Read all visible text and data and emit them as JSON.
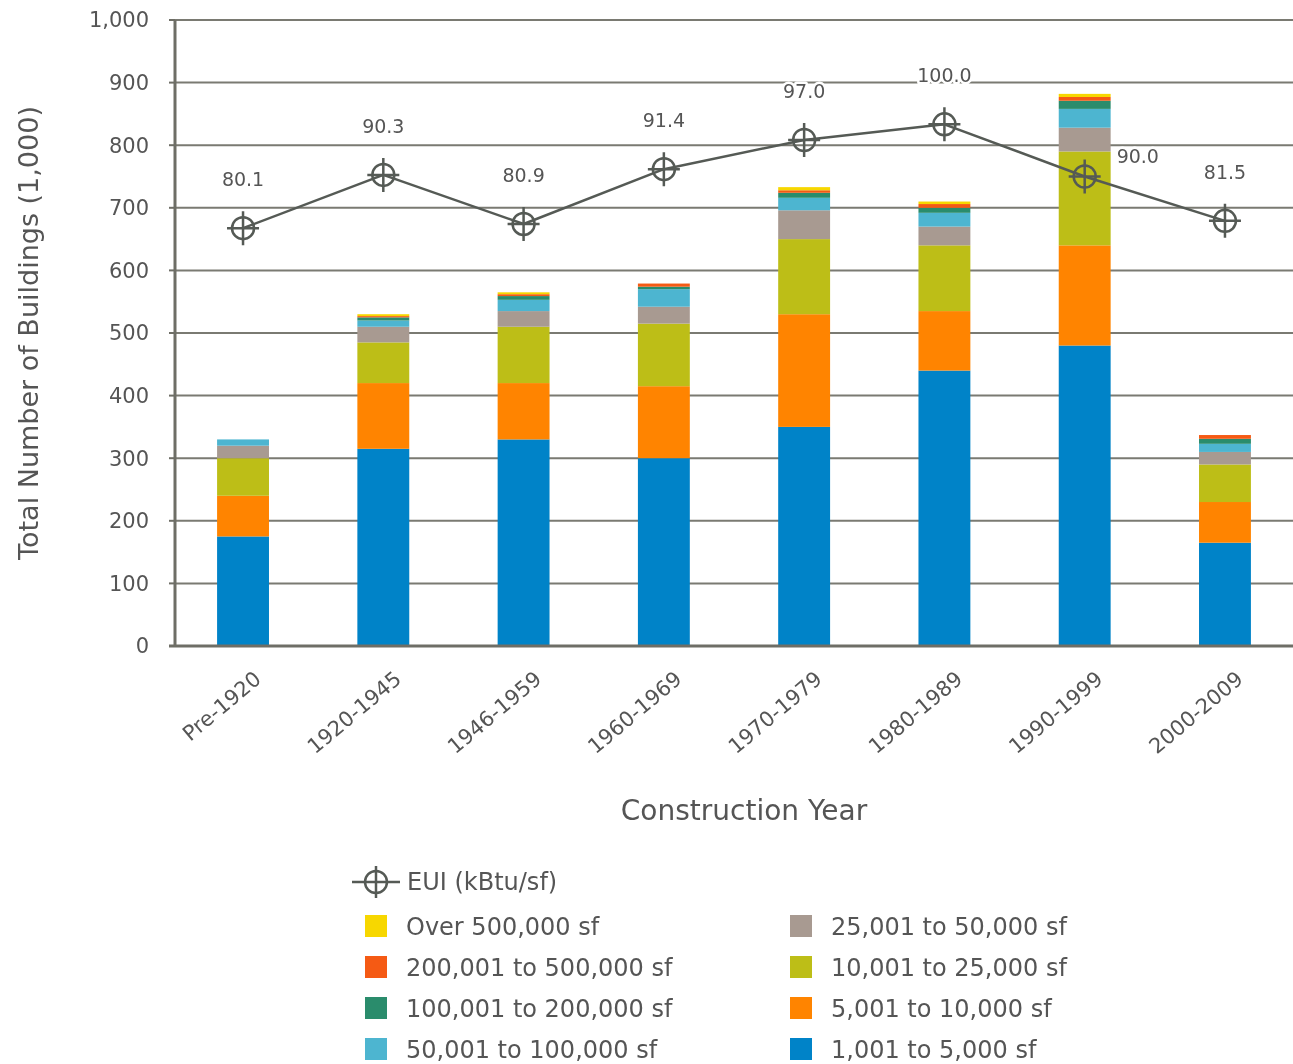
{
  "chart_data": {
    "type": "bar",
    "stacked": true,
    "xlabel": "Construction Year",
    "ylabel": "Total Number of Buildings (1,000)",
    "categories": [
      "Pre-1920",
      "1920-1945",
      "1946-1959",
      "1960-1969",
      "1970-1979",
      "1980-1989",
      "1990-1999",
      "2000-2009"
    ],
    "ylim": [
      0,
      1000
    ],
    "yticks": [
      0,
      100,
      200,
      300,
      400,
      500,
      600,
      700,
      800,
      900,
      {
        "value": 1000,
        "label": "1,000"
      }
    ],
    "y2lim": [
      0,
      120
    ],
    "grid": "y",
    "legend": "bottom",
    "series": [
      {
        "name": "1,001 to 5,000 sf",
        "color": "#0083c8",
        "values": [
          175,
          315,
          330,
          300,
          350,
          440,
          480,
          165
        ]
      },
      {
        "name": "5,001 to 10,000 sf",
        "color": "#ff8400",
        "values": [
          65,
          105,
          90,
          115,
          180,
          95,
          160,
          65
        ]
      },
      {
        "name": "10,001 to 25,000 sf",
        "color": "#bdbe17",
        "values": [
          60,
          65,
          90,
          100,
          120,
          105,
          150,
          60
        ]
      },
      {
        "name": "25,001 to 50,000 sf",
        "color": "#a89a91",
        "values": [
          20,
          25,
          25,
          27,
          46,
          30,
          38,
          20
        ]
      },
      {
        "name": "50,001 to 100,000 sf",
        "color": "#4db5d0",
        "values": [
          10,
          10,
          18,
          28,
          20,
          22,
          30,
          13
        ]
      },
      {
        "name": "100,001 to 200,000 sf",
        "color": "#2a8c6c",
        "values": [
          0,
          5,
          6,
          4,
          8,
          8,
          13,
          8
        ]
      },
      {
        "name": "200,001 to 500,000 sf",
        "color": "#f55a14",
        "values": [
          0,
          2,
          3,
          5,
          4,
          6,
          6,
          6
        ]
      },
      {
        "name": "Over 500,000 sf",
        "color": "#f7d700",
        "values": [
          0,
          3,
          3,
          0,
          5,
          4,
          5,
          0
        ]
      },
      {
        "name": "EUI (kBtu/sf)",
        "type": "line",
        "axis": "y2",
        "color": "#555a55",
        "marker": "circle",
        "line_style": "solid",
        "values": [
          80.1,
          90.3,
          80.9,
          91.4,
          97.0,
          100.0,
          90.0,
          81.5
        ],
        "value_labels": [
          "80.1",
          "90.3",
          "80.9",
          "91.4",
          "97.0",
          "100.0",
          "90.0",
          "81.5"
        ]
      }
    ]
  }
}
